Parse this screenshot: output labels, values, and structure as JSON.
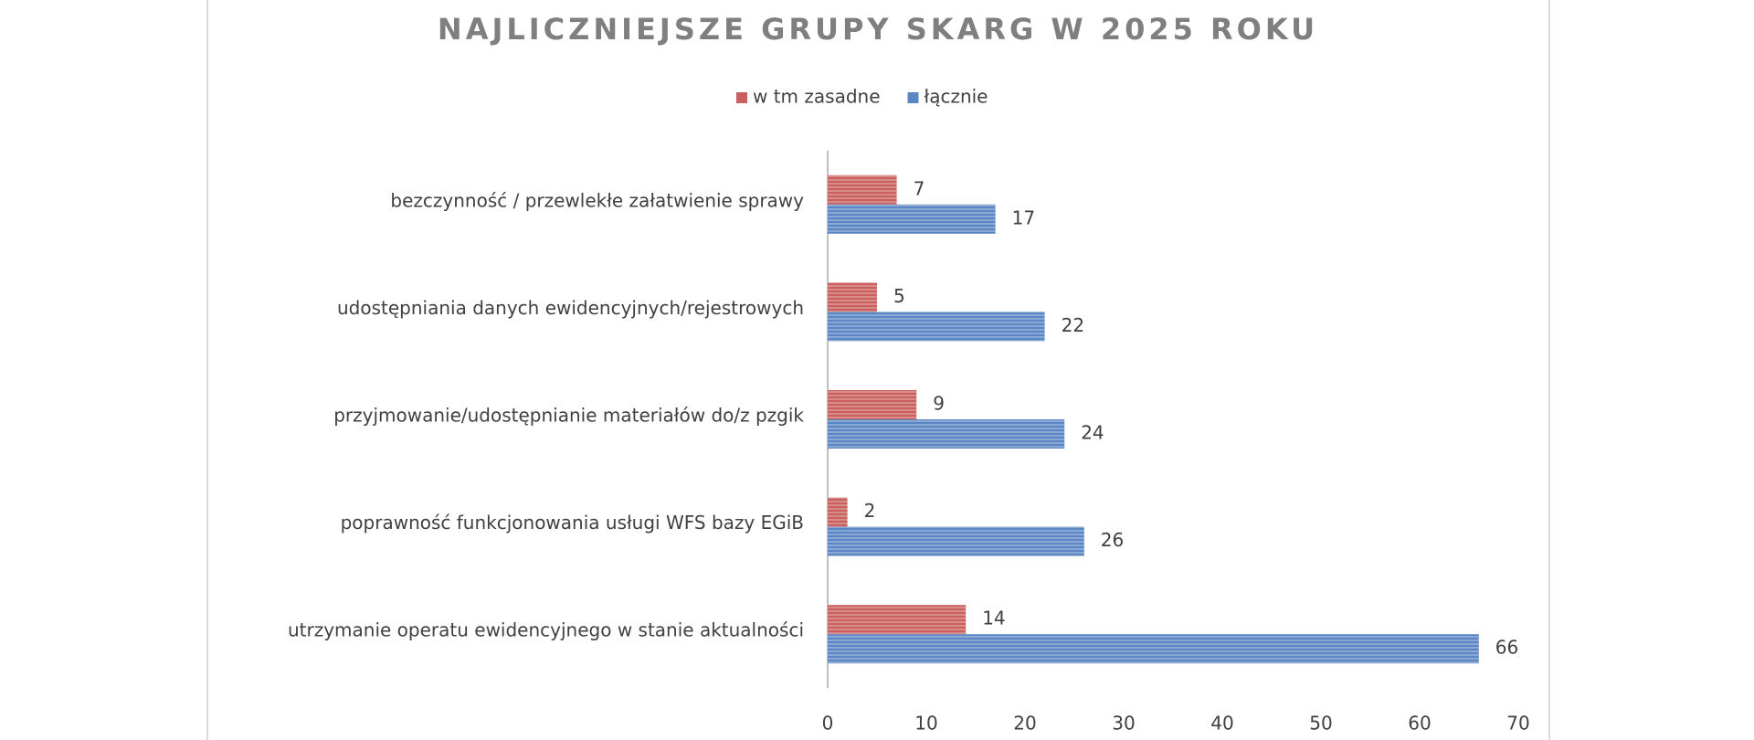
{
  "chart_data": {
    "type": "bar",
    "orientation": "horizontal",
    "title": "NAJLICZNIEJSZE GRUPY SKARG W 2025 ROKU",
    "categories": [
      "bezczynność / przewlekłe załatwienie sprawy",
      "udostępniania danych ewidencyjnych/rejestrowych",
      "przyjmowanie/udostępnianie materiałów do/z pzgik",
      "poprawność funkcjonowania usługi WFS bazy EGiB",
      "utrzymanie operatu ewidencyjnego w stanie aktualności"
    ],
    "series": [
      {
        "name": "w tm zasadne",
        "color": "#c9605d",
        "values": [
          7,
          5,
          9,
          2,
          14
        ]
      },
      {
        "name": "łącznie",
        "color": "#5b86c4",
        "values": [
          17,
          22,
          24,
          26,
          66
        ]
      }
    ],
    "xlim": [
      0,
      70
    ],
    "xticks": [
      0,
      10,
      20,
      30,
      40,
      50,
      60,
      70
    ],
    "grid": false,
    "legend": "top"
  }
}
